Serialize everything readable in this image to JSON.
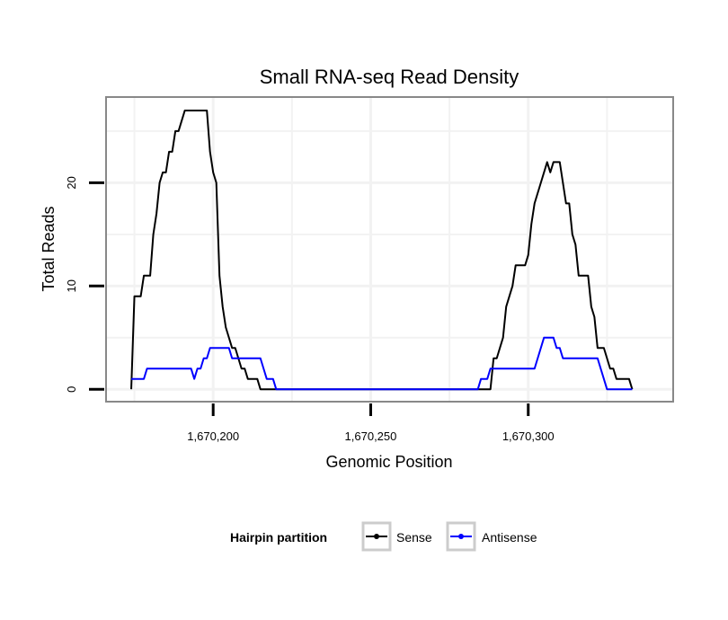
{
  "chart_data": {
    "type": "line",
    "title": "Small RNA-seq Read Density",
    "xlabel": "Genomic Position",
    "ylabel": "Total Reads",
    "xlim": [
      1670166,
      1670346
    ],
    "ylim": [
      -1.2,
      28.3
    ],
    "x_ticks": [
      1670200,
      1670250,
      1670300
    ],
    "x_tick_labels": [
      "1,670,200",
      "1,670,250",
      "1,670,300"
    ],
    "y_ticks": [
      0,
      10,
      20
    ],
    "y_tick_labels": [
      "0",
      "10",
      "20"
    ],
    "grid": true,
    "legend": {
      "title": "Hairpin partition",
      "placement": "bottom"
    },
    "series": [
      {
        "name": "Sense",
        "color": "#000000",
        "points": [
          [
            1670174,
            0
          ],
          [
            1670175,
            9
          ],
          [
            1670177,
            9
          ],
          [
            1670178,
            11
          ],
          [
            1670180,
            11
          ],
          [
            1670181,
            15
          ],
          [
            1670182,
            17
          ],
          [
            1670183,
            20
          ],
          [
            1670184,
            21
          ],
          [
            1670185,
            21
          ],
          [
            1670186,
            23
          ],
          [
            1670187,
            23
          ],
          [
            1670188,
            25
          ],
          [
            1670189,
            25
          ],
          [
            1670190,
            26
          ],
          [
            1670191,
            27
          ],
          [
            1670198,
            27
          ],
          [
            1670199,
            23
          ],
          [
            1670200,
            21
          ],
          [
            1670201,
            20
          ],
          [
            1670202,
            11
          ],
          [
            1670203,
            8
          ],
          [
            1670204,
            6
          ],
          [
            1670205,
            5
          ],
          [
            1670206,
            4
          ],
          [
            1670207,
            4
          ],
          [
            1670208,
            3
          ],
          [
            1670209,
            2
          ],
          [
            1670210,
            2
          ],
          [
            1670211,
            1
          ],
          [
            1670214,
            1
          ],
          [
            1670215,
            0
          ],
          [
            1670288,
            0
          ],
          [
            1670289,
            3
          ],
          [
            1670290,
            3
          ],
          [
            1670291,
            4
          ],
          [
            1670292,
            5
          ],
          [
            1670293,
            8
          ],
          [
            1670294,
            9
          ],
          [
            1670295,
            10
          ],
          [
            1670296,
            12
          ],
          [
            1670299,
            12
          ],
          [
            1670300,
            13
          ],
          [
            1670301,
            16
          ],
          [
            1670302,
            18
          ],
          [
            1670304,
            20
          ],
          [
            1670306,
            22
          ],
          [
            1670307,
            21
          ],
          [
            1670308,
            22
          ],
          [
            1670310,
            22
          ],
          [
            1670311,
            20
          ],
          [
            1670312,
            18
          ],
          [
            1670313,
            18
          ],
          [
            1670314,
            15
          ],
          [
            1670315,
            14
          ],
          [
            1670316,
            11
          ],
          [
            1670319,
            11
          ],
          [
            1670320,
            8
          ],
          [
            1670321,
            7
          ],
          [
            1670322,
            4
          ],
          [
            1670324,
            4
          ],
          [
            1670326,
            2
          ],
          [
            1670327,
            2
          ],
          [
            1670328,
            1
          ],
          [
            1670332,
            1
          ],
          [
            1670333,
            0
          ]
        ]
      },
      {
        "name": "Antisense",
        "color": "#0000ff",
        "points": [
          [
            1670174,
            1
          ],
          [
            1670178,
            1
          ],
          [
            1670179,
            2
          ],
          [
            1670193,
            2
          ],
          [
            1670194,
            1
          ],
          [
            1670195,
            2
          ],
          [
            1670196,
            2
          ],
          [
            1670197,
            3
          ],
          [
            1670198,
            3
          ],
          [
            1670199,
            4
          ],
          [
            1670205,
            4
          ],
          [
            1670206,
            3
          ],
          [
            1670215,
            3
          ],
          [
            1670216,
            2
          ],
          [
            1670217,
            1
          ],
          [
            1670219,
            1
          ],
          [
            1670220,
            0
          ],
          [
            1670284,
            0
          ],
          [
            1670285,
            1
          ],
          [
            1670287,
            1
          ],
          [
            1670288,
            2
          ],
          [
            1670302,
            2
          ],
          [
            1670303,
            3
          ],
          [
            1670305,
            5
          ],
          [
            1670308,
            5
          ],
          [
            1670309,
            4
          ],
          [
            1670310,
            4
          ],
          [
            1670311,
            3
          ],
          [
            1670322,
            3
          ],
          [
            1670323,
            2
          ],
          [
            1670324,
            1
          ],
          [
            1670325,
            0
          ],
          [
            1670333,
            0
          ]
        ]
      }
    ]
  }
}
